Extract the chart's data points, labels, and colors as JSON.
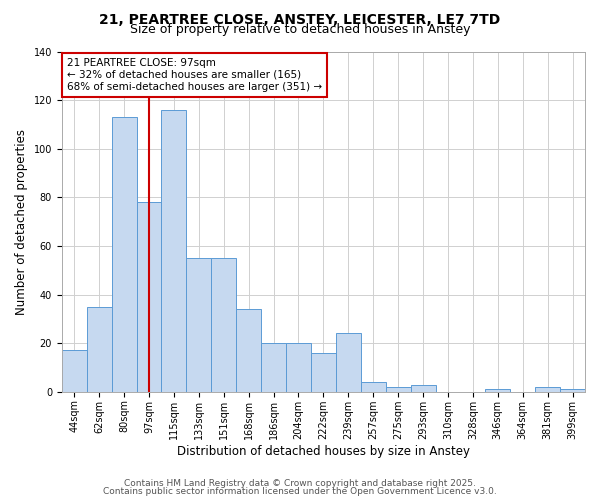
{
  "title": "21, PEARTREE CLOSE, ANSTEY, LEICESTER, LE7 7TD",
  "subtitle": "Size of property relative to detached houses in Anstey",
  "xlabel": "Distribution of detached houses by size in Anstey",
  "ylabel": "Number of detached properties",
  "bins": [
    "44sqm",
    "62sqm",
    "80sqm",
    "97sqm",
    "115sqm",
    "133sqm",
    "151sqm",
    "168sqm",
    "186sqm",
    "204sqm",
    "222sqm",
    "239sqm",
    "257sqm",
    "275sqm",
    "293sqm",
    "310sqm",
    "328sqm",
    "346sqm",
    "364sqm",
    "381sqm",
    "399sqm"
  ],
  "values": [
    17,
    35,
    113,
    78,
    116,
    55,
    55,
    34,
    20,
    20,
    16,
    24,
    4,
    2,
    3,
    0,
    0,
    1,
    0,
    2,
    1
  ],
  "bar_color": "#c6d9f0",
  "bar_edge_color": "#5b9bd5",
  "vline_x_index": 3,
  "vline_color": "#cc0000",
  "annotation_line1": "21 PEARTREE CLOSE: 97sqm",
  "annotation_line2": "← 32% of detached houses are smaller (165)",
  "annotation_line3": "68% of semi-detached houses are larger (351) →",
  "annotation_box_color": "white",
  "annotation_box_edge_color": "#cc0000",
  "ylim": [
    0,
    140
  ],
  "yticks": [
    0,
    20,
    40,
    60,
    80,
    100,
    120,
    140
  ],
  "footer1": "Contains HM Land Registry data © Crown copyright and database right 2025.",
  "footer2": "Contains public sector information licensed under the Open Government Licence v3.0.",
  "bg_color": "#f0f0f0",
  "grid_color": "#d0d0d0",
  "title_fontsize": 10,
  "subtitle_fontsize": 9,
  "axis_label_fontsize": 8.5,
  "tick_fontsize": 7,
  "annotation_fontsize": 7.5,
  "footer_fontsize": 6.5
}
